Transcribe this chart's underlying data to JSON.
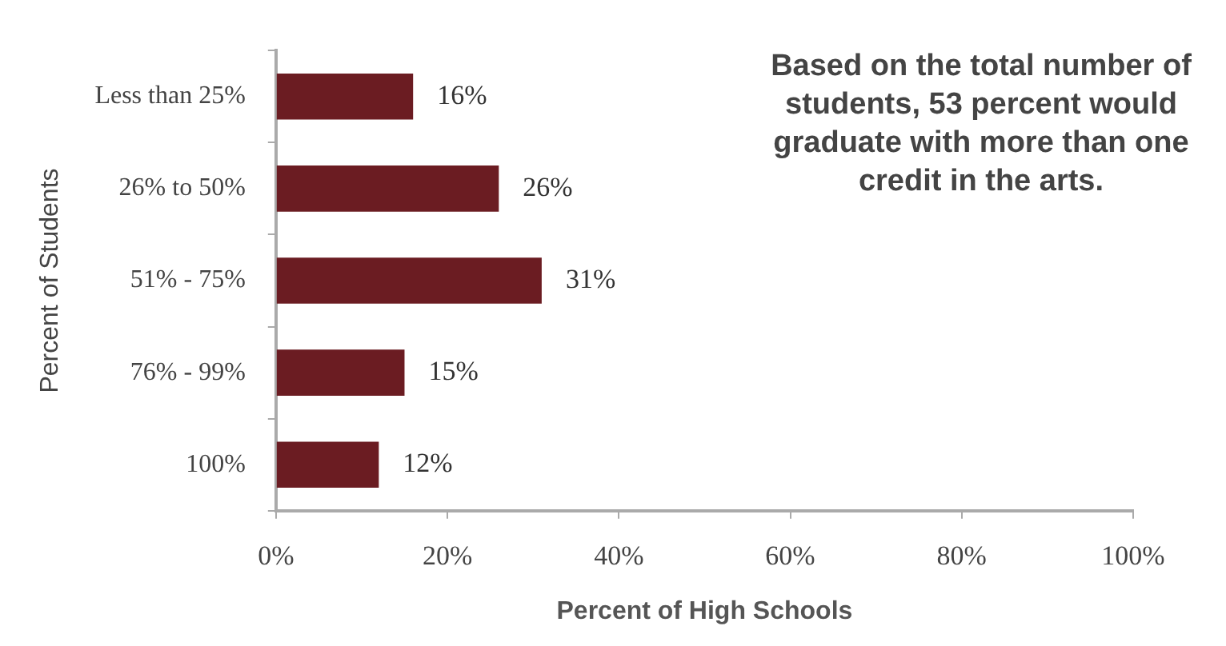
{
  "chart_data": {
    "type": "bar",
    "orientation": "horizontal",
    "xlabel": "Percent of High Schools",
    "ylabel": "Percent of Students",
    "categories": [
      "Less than 25%",
      "26% to 50%",
      "51% - 75%",
      "76% - 99%",
      "100%"
    ],
    "values": [
      16,
      26,
      31,
      15,
      12
    ],
    "color": "#6b1c22",
    "value_labels": [
      "16%",
      "26%",
      "31%",
      "15%",
      "12%"
    ],
    "xlim": [
      0,
      100
    ],
    "xticks": [
      {
        "value": 0,
        "label": "0%"
      },
      {
        "value": 20,
        "label": "20%"
      },
      {
        "value": 40,
        "label": "40%"
      },
      {
        "value": 60,
        "label": "60%"
      },
      {
        "value": 80,
        "label": "80%"
      },
      {
        "value": 100,
        "label": "100%"
      }
    ],
    "grid": false,
    "legend": false,
    "annotations": [
      "Based on the total number of students, 53 percent would graduate with more than one credit in the arts."
    ]
  }
}
